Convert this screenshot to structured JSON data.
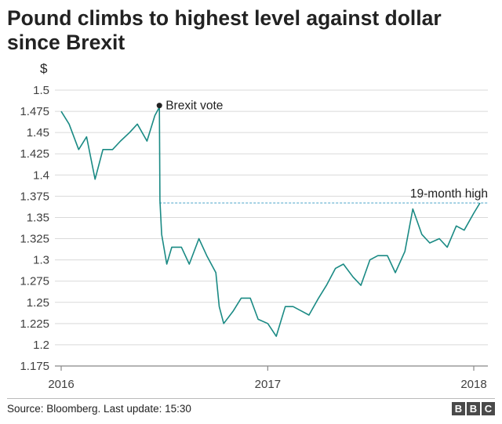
{
  "title": "Pound climbs to highest level against dollar since Brexit",
  "source": "Source: Bloomberg. Last update: 15:30",
  "logo_letters": [
    "B",
    "B",
    "C"
  ],
  "colors": {
    "line": "#1a8a84",
    "reference": "#4aa3c8",
    "grid": "#d9d9d9",
    "axis": "#888888"
  },
  "chart_data": {
    "type": "line",
    "title": "Pound climbs to highest level against dollar since Brexit",
    "ylabel": "$",
    "xlabel": "",
    "ylim": [
      1.175,
      1.5
    ],
    "y_ticks": [
      "1.5",
      "1.475",
      "1.45",
      "1.425",
      "1.4",
      "1.375",
      "1.35",
      "1.325",
      "1.3",
      "1.275",
      "1.25",
      "1.225",
      "1.2",
      "1.175"
    ],
    "x_ticks": [
      "2016",
      "2017",
      "2018"
    ],
    "grid": "horizontal",
    "annotations": [
      {
        "label": "Brexit vote",
        "x": "2016-06-23",
        "y": 1.48
      },
      {
        "label": "19-month high",
        "y": 1.367
      }
    ],
    "series": [
      {
        "x": [
          "2016-01-01",
          "2016-01-15",
          "2016-02-01",
          "2016-02-15",
          "2016-03-01",
          "2016-03-15",
          "2016-04-01",
          "2016-04-15",
          "2016-05-01",
          "2016-05-15",
          "2016-06-01",
          "2016-06-15",
          "2016-06-23",
          "2016-06-24",
          "2016-06-27",
          "2016-07-06",
          "2016-07-15",
          "2016-08-01",
          "2016-08-15",
          "2016-09-01",
          "2016-09-15",
          "2016-10-01",
          "2016-10-07",
          "2016-10-15",
          "2016-11-01",
          "2016-11-15",
          "2016-12-01",
          "2016-12-15",
          "2017-01-01",
          "2017-01-16",
          "2017-02-01",
          "2017-02-15",
          "2017-03-01",
          "2017-03-15",
          "2017-04-01",
          "2017-04-15",
          "2017-05-01",
          "2017-05-15",
          "2017-06-01",
          "2017-06-15",
          "2017-07-01",
          "2017-07-15",
          "2017-08-01",
          "2017-08-15",
          "2017-09-01",
          "2017-09-15",
          "2017-10-01",
          "2017-10-15",
          "2017-11-01",
          "2017-11-15",
          "2017-12-01",
          "2017-12-15",
          "2018-01-01",
          "2018-01-12"
        ],
        "y": [
          1.475,
          1.46,
          1.43,
          1.445,
          1.395,
          1.43,
          1.43,
          1.44,
          1.45,
          1.46,
          1.44,
          1.47,
          1.48,
          1.37,
          1.33,
          1.295,
          1.315,
          1.315,
          1.295,
          1.325,
          1.305,
          1.285,
          1.245,
          1.225,
          1.24,
          1.255,
          1.255,
          1.23,
          1.225,
          1.21,
          1.245,
          1.245,
          1.24,
          1.235,
          1.255,
          1.27,
          1.29,
          1.295,
          1.28,
          1.27,
          1.3,
          1.305,
          1.305,
          1.285,
          1.31,
          1.36,
          1.33,
          1.32,
          1.325,
          1.315,
          1.34,
          1.335,
          1.355,
          1.367
        ]
      }
    ]
  }
}
